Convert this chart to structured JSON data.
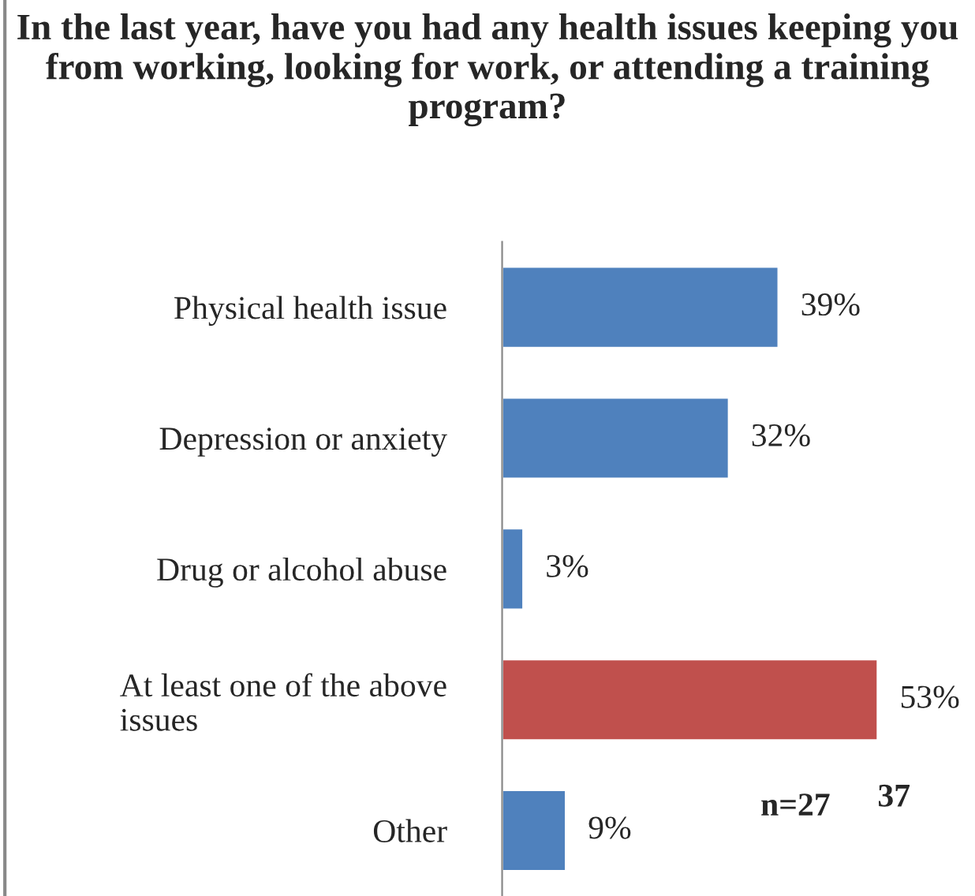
{
  "chart_data": {
    "type": "bar",
    "orientation": "horizontal",
    "title": "In the last year, have you had any health issues keeping you from working, looking for work, or attending a training program?",
    "categories": [
      "Physical health issue",
      "Depression or anxiety",
      "Drug or alcohol abuse",
      "At least one of the above issues",
      "Other"
    ],
    "values": [
      39,
      32,
      3,
      53,
      9
    ],
    "colors": [
      "#4f81bd",
      "#4f81bd",
      "#4f81bd",
      "#c0504d",
      "#4f81bd"
    ],
    "value_labels": [
      "39%",
      "32%",
      "3%",
      "53%",
      "9%"
    ],
    "tick_labels": "y",
    "grid": false,
    "legend": false,
    "annotations": [
      "n=27",
      "37"
    ]
  }
}
